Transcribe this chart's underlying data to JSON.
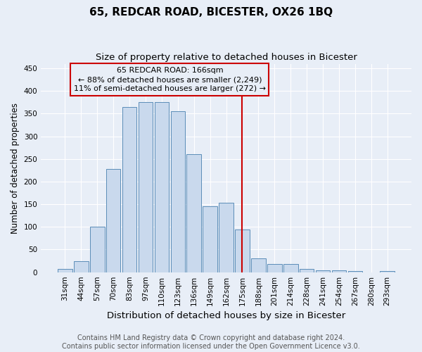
{
  "title": "65, REDCAR ROAD, BICESTER, OX26 1BQ",
  "subtitle": "Size of property relative to detached houses in Bicester",
  "xlabel": "Distribution of detached houses by size in Bicester",
  "ylabel": "Number of detached properties",
  "bar_labels": [
    "31sqm",
    "44sqm",
    "57sqm",
    "70sqm",
    "83sqm",
    "97sqm",
    "110sqm",
    "123sqm",
    "136sqm",
    "149sqm",
    "162sqm",
    "175sqm",
    "188sqm",
    "201sqm",
    "214sqm",
    "228sqm",
    "241sqm",
    "254sqm",
    "267sqm",
    "280sqm",
    "293sqm"
  ],
  "bar_heights": [
    8,
    25,
    100,
    228,
    365,
    375,
    375,
    355,
    260,
    145,
    153,
    95,
    30,
    18,
    18,
    8,
    4,
    4,
    2,
    0,
    2
  ],
  "bar_color": "#c9d9ed",
  "bar_edge_color": "#5b8db8",
  "vline_x": 11.0,
  "vline_color": "#cc0000",
  "annotation_line1": "65 REDCAR ROAD: 166sqm",
  "annotation_line2": "← 88% of detached houses are smaller (2,249)",
  "annotation_line3": "11% of semi-detached houses are larger (272) →",
  "annotation_box_color": "#cc0000",
  "ylim": [
    0,
    460
  ],
  "yticks": [
    0,
    50,
    100,
    150,
    200,
    250,
    300,
    350,
    400,
    450
  ],
  "footer_text": "Contains HM Land Registry data © Crown copyright and database right 2024.\nContains public sector information licensed under the Open Government Licence v3.0.",
  "bg_color": "#e8eef7",
  "grid_color": "#ffffff",
  "title_fontsize": 11,
  "subtitle_fontsize": 9.5,
  "xlabel_fontsize": 9.5,
  "ylabel_fontsize": 8.5,
  "tick_fontsize": 7.5,
  "annotation_fontsize": 8,
  "footer_fontsize": 7
}
